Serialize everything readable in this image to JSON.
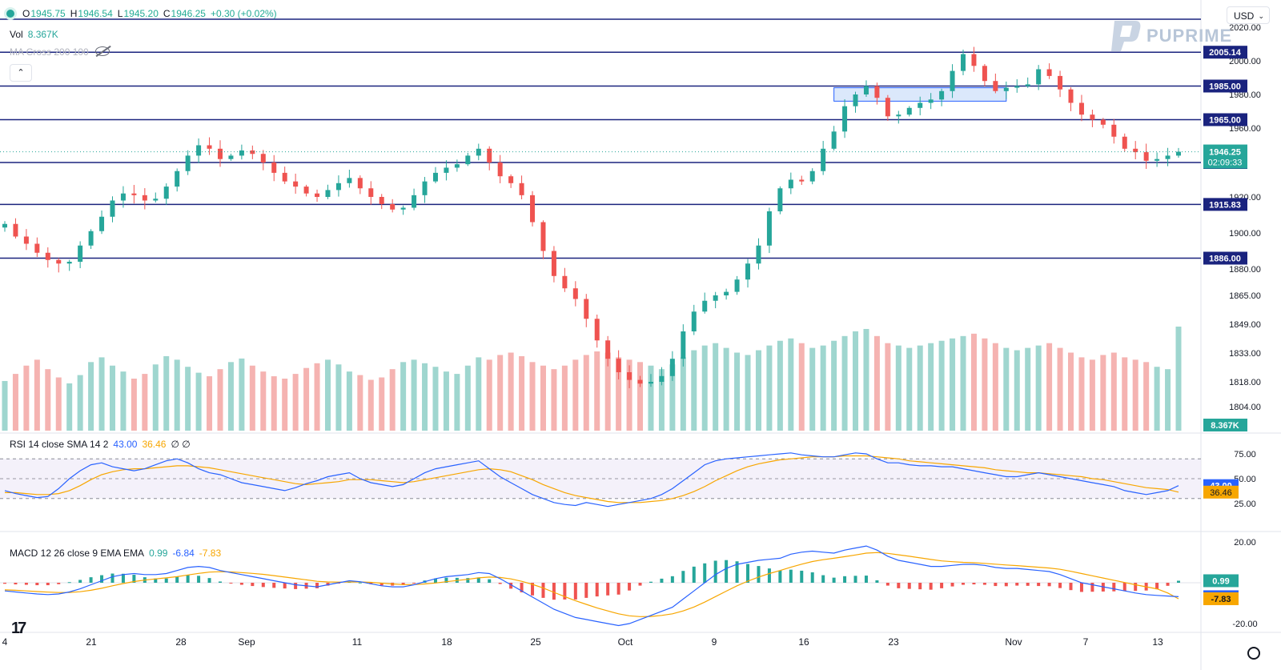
{
  "legend": {
    "open_label": "O",
    "open": "1945.75",
    "high_label": "H",
    "high": "1946.54",
    "low_label": "L",
    "low": "1945.20",
    "close_label": "C",
    "close": "1946.25",
    "change": "+0.30 (+0.02%)"
  },
  "volume": {
    "label": "Vol",
    "value": "8.367K"
  },
  "ma_cross": {
    "label": "MA Cross 200 100"
  },
  "collapse_glyph": "⌃",
  "currency": {
    "label": "USD",
    "chevron": "⌄"
  },
  "brand": {
    "name": "PUPRIME"
  },
  "rsi_legend": {
    "label": "RSI 14 close SMA 14 2",
    "rsi": "43.00",
    "sma": "36.46",
    "extra": "∅ ∅"
  },
  "macd_legend": {
    "label": "MACD 12 26 close 9 EMA EMA",
    "hist": "0.99",
    "macd": "-6.84",
    "signal": "-7.83"
  },
  "tv_logo": "17",
  "colors": {
    "up": "#26a69a",
    "down": "#ef5350",
    "level": "#1a237e",
    "rsi": "#2962ff",
    "sma": "#f7a600"
  },
  "chart_data": {
    "type": "candlestick",
    "price_axis": {
      "ticks": [
        "2020.00",
        "2000.00",
        "1980.00",
        "1960.00",
        "1920.00",
        "1900.00",
        "1880.00",
        "1865.00",
        "1849.00",
        "1833.00",
        "1818.00",
        "1804.00"
      ]
    },
    "x_axis": {
      "ticks": [
        "4",
        "21",
        "28",
        "Sep",
        "11",
        "18",
        "25",
        "Oct",
        "9",
        "16",
        "23",
        "Nov",
        "7",
        "13"
      ]
    },
    "levels": [
      "2005.14",
      "1985.00",
      "1965.00",
      "1940.00",
      "1915.83",
      "1886.00"
    ],
    "current_price": "1946.25",
    "countdown": "02:09:33",
    "volume_badge": "8.367K",
    "candles": [
      1905,
      1898,
      1894,
      1889,
      1885,
      1883,
      1884,
      1893,
      1901,
      1909,
      1918,
      1922,
      1921,
      1918,
      1919,
      1926,
      1935,
      1944,
      1950,
      1948,
      1942,
      1944,
      1947,
      1945,
      1940,
      1934,
      1929,
      1926,
      1922,
      1920,
      1924,
      1928,
      1931,
      1925,
      1920,
      1916,
      1913,
      1914,
      1921,
      1929,
      1934,
      1937,
      1939,
      1944,
      1948,
      1940,
      1932,
      1928,
      1921,
      1906,
      1890,
      1876,
      1869,
      1863,
      1852,
      1840,
      1830,
      1823,
      1819,
      1817,
      1818,
      1821,
      1830,
      1845,
      1856,
      1862,
      1865,
      1867,
      1874,
      1883,
      1893,
      1912,
      1925,
      1930,
      1929,
      1935,
      1948,
      1958,
      1973,
      1980,
      1985,
      1978,
      1967,
      1968,
      1972,
      1975,
      1977,
      1982,
      1994,
      2004,
      1997,
      1988,
      1982,
      1984,
      1985,
      1986,
      1995,
      1991,
      1983,
      1975,
      1968,
      1965,
      1962,
      1955,
      1948,
      1946,
      1941,
      1942,
      1944,
      1946.25
    ],
    "rsi_axis": {
      "ticks": [
        "75.00",
        "50.00",
        "25.00"
      ],
      "upper": 70,
      "mid": 50,
      "lower": 30
    },
    "rsi": [
      38,
      35,
      33,
      31,
      32,
      40,
      50,
      58,
      64,
      66,
      62,
      60,
      58,
      60,
      64,
      68,
      70,
      66,
      60,
      56,
      54,
      50,
      46,
      44,
      42,
      40,
      38,
      41,
      45,
      48,
      52,
      54,
      56,
      50,
      46,
      44,
      42,
      44,
      50,
      56,
      60,
      62,
      64,
      66,
      68,
      60,
      52,
      46,
      40,
      34,
      30,
      26,
      24,
      23,
      26,
      24,
      22,
      24,
      26,
      28,
      30,
      34,
      40,
      48,
      56,
      64,
      68,
      70,
      71,
      72,
      73,
      74,
      75,
      76,
      74,
      73,
      72,
      72,
      74,
      76,
      75,
      70,
      66,
      66,
      64,
      63,
      63,
      62,
      62,
      60,
      58,
      56,
      54,
      52,
      52,
      54,
      56,
      54,
      52,
      50,
      48,
      46,
      44,
      42,
      38,
      36,
      34,
      36,
      38,
      43
    ],
    "rsi_sma": [
      36,
      36,
      35,
      34,
      34,
      35,
      38,
      43,
      49,
      54,
      57,
      59,
      60,
      60,
      61,
      62,
      63,
      63,
      62,
      61,
      59,
      57,
      55,
      53,
      51,
      49,
      47,
      45,
      44,
      45,
      46,
      47,
      49,
      49,
      49,
      48,
      47,
      46,
      47,
      49,
      51,
      53,
      55,
      57,
      59,
      60,
      59,
      57,
      53,
      49,
      44,
      40,
      36,
      33,
      31,
      29,
      27,
      26,
      26,
      26,
      27,
      28,
      30,
      33,
      37,
      42,
      48,
      53,
      58,
      62,
      65,
      67,
      69,
      70,
      71,
      72,
      72,
      72,
      73,
      73,
      73,
      72,
      71,
      70,
      68,
      67,
      66,
      65,
      64,
      63,
      62,
      61,
      59,
      58,
      57,
      56,
      56,
      55,
      54,
      53,
      52,
      50,
      49,
      47,
      45,
      43,
      41,
      40,
      39,
      36.46
    ],
    "macd_axis": {
      "ticks": [
        "20.00",
        "-20.00"
      ]
    },
    "macd": [
      -4,
      -4.5,
      -5,
      -5.5,
      -5.8,
      -5.5,
      -4.5,
      -3,
      -1,
      1,
      3,
      4,
      4.5,
      4,
      4,
      4.5,
      6,
      7.5,
      8,
      7.5,
      6,
      5,
      4,
      3,
      2,
      1,
      0,
      -1,
      -1.5,
      -2,
      -1,
      0,
      1,
      0.5,
      -0.5,
      -1.5,
      -2,
      -2,
      -1,
      0.5,
      2,
      3,
      3.5,
      4,
      5,
      4.5,
      2,
      -1,
      -4,
      -7,
      -10,
      -13,
      -15,
      -17,
      -18,
      -19,
      -20,
      -21,
      -20,
      -18,
      -16,
      -14,
      -12,
      -8,
      -4,
      0,
      4,
      7,
      9,
      10,
      11,
      11.5,
      12,
      14,
      15,
      15.5,
      15,
      14.5,
      16,
      17,
      18,
      16,
      13,
      11,
      10,
      9,
      8,
      8,
      8.5,
      9,
      9,
      8.5,
      7.5,
      7,
      7,
      6.5,
      6,
      5.5,
      4,
      2,
      0,
      -1,
      -2,
      -3,
      -4,
      -5,
      -5.8,
      -6.2,
      -6.5,
      -6.84
    ],
    "signal": [
      -3.5,
      -3.7,
      -4,
      -4.3,
      -4.6,
      -4.8,
      -4.8,
      -4.4,
      -3.7,
      -2.7,
      -1.5,
      -0.4,
      0.6,
      1.3,
      1.9,
      2.4,
      3,
      3.8,
      4.6,
      5.2,
      5.4,
      5.3,
      5,
      4.6,
      4.1,
      3.5,
      2.8,
      2.1,
      1.4,
      0.7,
      0.4,
      0.3,
      0.4,
      0.4,
      0.2,
      -0.2,
      -0.6,
      -0.9,
      -0.9,
      -0.6,
      -0.1,
      0.5,
      1.1,
      1.7,
      2.4,
      2.8,
      2.6,
      1.9,
      0.7,
      -0.8,
      -2.6,
      -4.7,
      -6.8,
      -8.8,
      -10.6,
      -12.3,
      -13.8,
      -15.2,
      -16.2,
      -16.6,
      -16.5,
      -16,
      -15.2,
      -13.8,
      -11.9,
      -9.5,
      -6.8,
      -4.1,
      -1.5,
      0.8,
      2.8,
      4.5,
      6,
      7.6,
      9.1,
      10.4,
      11.3,
      12,
      12.8,
      13.6,
      14.5,
      14.8,
      14.4,
      13.7,
      13,
      12.2,
      11.4,
      10.7,
      10.3,
      10,
      9.8,
      9.5,
      9.1,
      8.7,
      8.4,
      8,
      7.6,
      7.2,
      6.6,
      5.6,
      4.5,
      3.4,
      2.3,
      1.2,
      0.1,
      -1,
      -2,
      -3,
      -5,
      -7.83
    ],
    "hist": [
      -0.5,
      -0.8,
      -1,
      -1.2,
      -1.2,
      -0.7,
      0.3,
      1.4,
      2.7,
      3.7,
      4.5,
      4.4,
      3.9,
      2.7,
      2.1,
      2.1,
      3,
      3.7,
      3.4,
      2.3,
      0.6,
      -0.3,
      -1,
      -1.6,
      -2.1,
      -2.5,
      -2.8,
      -3.1,
      -2.9,
      -2.7,
      -1.4,
      -0.3,
      0.6,
      0.1,
      -0.7,
      -1.3,
      -1.4,
      -1.1,
      -0.1,
      1.1,
      2.1,
      2.5,
      2.4,
      2.3,
      2.6,
      1.7,
      -0.6,
      -2.9,
      -4.7,
      -6.2,
      -7.4,
      -8.3,
      -8.2,
      -8.2,
      -7.4,
      -6.7,
      -6.2,
      -5.8,
      -3.8,
      -1.4,
      0.5,
      2,
      3.2,
      5.8,
      7.9,
      9.5,
      10.8,
      11.1,
      10.5,
      9.2,
      8.2,
      7,
      6,
      6.4,
      5.9,
      5.1,
      3.7,
      2.5,
      3.2,
      3.4,
      3.5,
      1.2,
      -1.4,
      -2.7,
      -3,
      -3.2,
      -3.4,
      -2.7,
      -1.8,
      -1,
      -0.8,
      -1,
      -1.6,
      -1.7,
      -1.4,
      -1.5,
      -1.6,
      -1.7,
      -2.6,
      -3.6,
      -4.5,
      -4.4,
      -4.3,
      -4.2,
      -4.1,
      -4,
      -3.8,
      -3.2,
      -1.5,
      0.99
    ],
    "volumes": [
      42,
      48,
      55,
      60,
      52,
      45,
      40,
      47,
      58,
      62,
      55,
      50,
      44,
      48,
      56,
      63,
      60,
      54,
      49,
      46,
      52,
      58,
      61,
      55,
      50,
      46,
      44,
      48,
      53,
      57,
      60,
      56,
      50,
      47,
      43,
      45,
      52,
      58,
      60,
      57,
      54,
      50,
      48,
      55,
      62,
      60,
      64,
      66,
      63,
      58,
      55,
      52,
      55,
      60,
      64,
      67,
      66,
      62,
      60,
      58,
      55,
      52,
      56,
      62,
      68,
      72,
      74,
      70,
      66,
      64,
      68,
      72,
      76,
      78,
      74,
      70,
      72,
      76,
      80,
      84,
      86,
      80,
      74,
      72,
      70,
      72,
      74,
      76,
      78,
      80,
      82,
      78,
      74,
      70,
      68,
      70,
      72,
      74,
      70,
      66,
      62,
      60,
      64,
      66,
      62,
      60,
      58,
      54,
      52,
      88
    ]
  }
}
